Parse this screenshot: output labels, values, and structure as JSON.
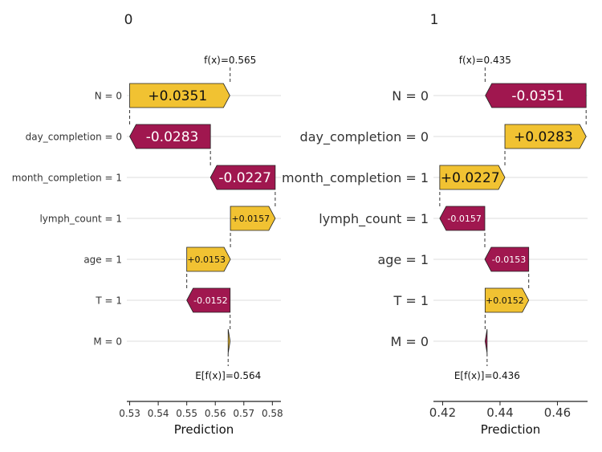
{
  "colors": {
    "positive": "#f1c232",
    "negative": "#a0174f",
    "grid": "#dedede",
    "text": "#333333"
  },
  "chart_data": [
    {
      "type": "waterfall",
      "title": "0",
      "xlabel": "Prediction",
      "xlim": [
        0.529,
        0.583
      ],
      "xticks": [
        0.53,
        0.54,
        0.55,
        0.56,
        0.57,
        0.58
      ],
      "xtick_labels": [
        "0.53",
        "0.54",
        "0.55",
        "0.56",
        "0.57",
        "0.58"
      ],
      "fx_label": "f(x)=0.565",
      "fx": 0.5652,
      "efx_label": "E[f(x)]=0.564",
      "efx": 0.5645,
      "features": [
        {
          "label": "N = 0",
          "value": 0.0351,
          "text": "+0.0351",
          "size": "large"
        },
        {
          "label": "day_completion = 0",
          "value": -0.0283,
          "text": "-0.0283",
          "size": "large"
        },
        {
          "label": "month_completion = 1",
          "value": -0.0227,
          "text": "-0.0227",
          "size": "large"
        },
        {
          "label": "lymph_count = 1",
          "value": 0.0157,
          "text": "+0.0157",
          "size": "small"
        },
        {
          "label": "age = 1",
          "value": 0.0153,
          "text": "+0.0153",
          "size": "small"
        },
        {
          "label": "T = 1",
          "value": -0.0152,
          "text": "-0.0152",
          "size": "small"
        },
        {
          "label": "M = 0",
          "value": 0.0007,
          "text": "",
          "size": "small"
        }
      ]
    },
    {
      "type": "waterfall",
      "title": "1",
      "xlabel": "Prediction",
      "xlim": [
        0.4168,
        0.4705
      ],
      "xticks": [
        0.42,
        0.44,
        0.46
      ],
      "xtick_labels": [
        "0.42",
        "0.44",
        "0.46"
      ],
      "fx_label": "f(x)=0.435",
      "fx": 0.4348,
      "efx_label": "E[f(x)]=0.436",
      "efx": 0.4355,
      "features": [
        {
          "label": "N = 0",
          "value": -0.0351,
          "text": "-0.0351",
          "size": "large"
        },
        {
          "label": "day_completion = 0",
          "value": 0.0283,
          "text": "+0.0283",
          "size": "large"
        },
        {
          "label": "month_completion = 1",
          "value": 0.0227,
          "text": "+0.0227",
          "size": "large"
        },
        {
          "label": "lymph_count = 1",
          "value": -0.0157,
          "text": "-0.0157",
          "size": "small"
        },
        {
          "label": "age = 1",
          "value": -0.0153,
          "text": "-0.0153",
          "size": "small"
        },
        {
          "label": "T = 1",
          "value": 0.0152,
          "text": "+0.0152",
          "size": "small"
        },
        {
          "label": "M = 0",
          "value": -0.0007,
          "text": "",
          "size": "small"
        }
      ]
    }
  ]
}
